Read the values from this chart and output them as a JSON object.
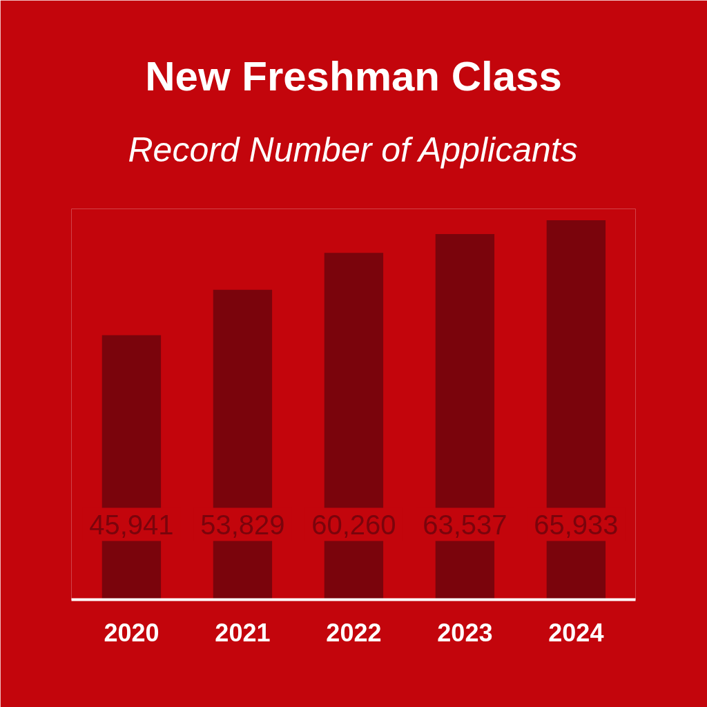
{
  "chart_data": {
    "type": "bar",
    "title": "New Freshman Class",
    "subtitle": "Record Number of Applicants",
    "categories": [
      "2020",
      "2021",
      "2022",
      "2023",
      "2024"
    ],
    "values": [
      45941,
      53829,
      60260,
      63537,
      65933
    ],
    "color": "#7a040c",
    "value_labels": [
      "45,941",
      "53,829",
      "60,260",
      "63,537",
      "65,933"
    ]
  }
}
